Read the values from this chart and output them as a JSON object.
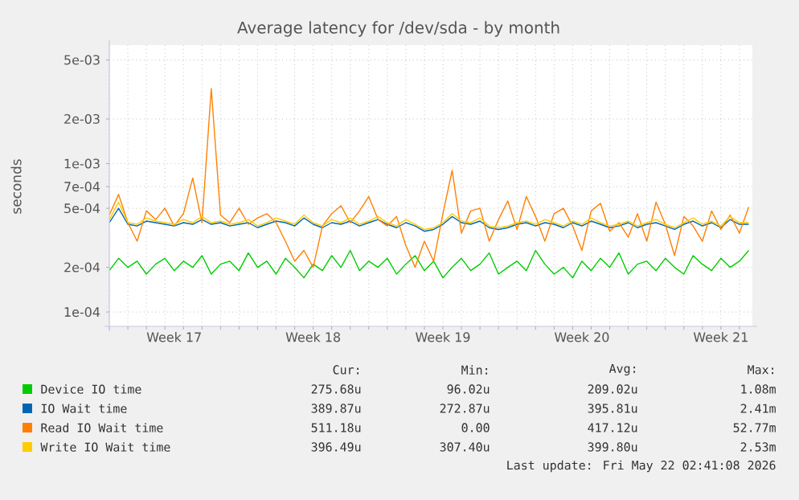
{
  "chart_data": {
    "type": "line",
    "title": "Average latency for /dev/sda - by month",
    "ylabel": "seconds",
    "log": "y",
    "grid": true,
    "legend": "bottom",
    "ylim": [
      8e-05,
      0.0063
    ],
    "yticks": [
      {
        "value": 0.0001,
        "label": "1e-04"
      },
      {
        "value": 0.0002,
        "label": "2e-04"
      },
      {
        "value": 0.0005,
        "label": "5e-04"
      },
      {
        "value": 0.0007,
        "label": "7e-04"
      },
      {
        "value": 0.001,
        "label": "1e-03"
      },
      {
        "value": 0.002,
        "label": "2e-03"
      },
      {
        "value": 0.005,
        "label": "5e-03"
      }
    ],
    "categories": [
      null,
      null,
      null,
      null,
      null,
      null,
      null,
      "Week 17",
      null,
      null,
      null,
      null,
      null,
      null,
      null,
      null,
      null,
      null,
      null,
      null,
      null,
      null,
      "Week 18",
      null,
      null,
      null,
      null,
      null,
      null,
      null,
      null,
      null,
      null,
      null,
      null,
      null,
      "Week 19",
      null,
      null,
      null,
      null,
      null,
      null,
      null,
      null,
      null,
      null,
      null,
      null,
      null,
      null,
      "Week 20",
      null,
      null,
      null,
      null,
      null,
      null,
      null,
      null,
      null,
      null,
      null,
      null,
      null,
      null,
      "Week 21",
      null,
      null,
      null
    ],
    "series": [
      {
        "name": "Device IO time",
        "color": "#00cc00",
        "values": [
          0.00019,
          0.00023,
          0.0002,
          0.00022,
          0.00018,
          0.00021,
          0.00023,
          0.00019,
          0.00022,
          0.0002,
          0.00024,
          0.00018,
          0.00021,
          0.00022,
          0.00019,
          0.00025,
          0.0002,
          0.00022,
          0.00018,
          0.00023,
          0.0002,
          0.00017,
          0.00021,
          0.00019,
          0.00024,
          0.0002,
          0.00026,
          0.00019,
          0.00022,
          0.0002,
          0.00023,
          0.00018,
          0.00021,
          0.00024,
          0.00019,
          0.00022,
          0.00017,
          0.0002,
          0.00023,
          0.00019,
          0.00021,
          0.00025,
          0.00018,
          0.0002,
          0.00022,
          0.00019,
          0.00026,
          0.00021,
          0.00018,
          0.0002,
          0.00017,
          0.00022,
          0.00019,
          0.00023,
          0.0002,
          0.00025,
          0.00018,
          0.00021,
          0.00022,
          0.00019,
          0.00023,
          0.0002,
          0.00018,
          0.00024,
          0.00021,
          0.00019,
          0.00023,
          0.0002,
          0.00022,
          0.00026
        ]
      },
      {
        "name": "IO Wait time",
        "color": "#0066b3",
        "values": [
          0.0004,
          0.0005,
          0.00039,
          0.00038,
          0.00041,
          0.0004,
          0.00039,
          0.00038,
          0.0004,
          0.00039,
          0.00042,
          0.00039,
          0.0004,
          0.00038,
          0.00039,
          0.0004,
          0.00037,
          0.00039,
          0.00041,
          0.0004,
          0.00038,
          0.00043,
          0.00039,
          0.00037,
          0.0004,
          0.00039,
          0.00041,
          0.00038,
          0.0004,
          0.00042,
          0.00039,
          0.00037,
          0.0004,
          0.00038,
          0.00035,
          0.00036,
          0.00039,
          0.00044,
          0.0004,
          0.00039,
          0.00041,
          0.00037,
          0.00036,
          0.00037,
          0.00039,
          0.0004,
          0.00038,
          0.0004,
          0.00039,
          0.00037,
          0.0004,
          0.00038,
          0.00041,
          0.00039,
          0.00037,
          0.00038,
          0.0004,
          0.00037,
          0.00039,
          0.0004,
          0.00038,
          0.00036,
          0.00039,
          0.00041,
          0.00038,
          0.0004,
          0.00037,
          0.00042,
          0.00039,
          0.00039
        ]
      },
      {
        "name": "Read IO Wait time",
        "color": "#ff8000",
        "values": [
          0.00045,
          0.00062,
          0.0004,
          0.0003,
          0.00048,
          0.00042,
          0.0005,
          0.00038,
          0.00046,
          0.0008,
          0.0004,
          0.0032,
          0.00045,
          0.0004,
          0.0005,
          0.00039,
          0.00043,
          0.00046,
          0.0004,
          0.0003,
          0.00022,
          0.00026,
          0.0002,
          0.00038,
          0.00046,
          0.00052,
          0.0004,
          0.00048,
          0.0006,
          0.00042,
          0.00038,
          0.00044,
          0.00028,
          0.0002,
          0.0003,
          0.00022,
          0.00046,
          0.0009,
          0.00034,
          0.00048,
          0.0005,
          0.0003,
          0.00042,
          0.00056,
          0.00036,
          0.0006,
          0.00044,
          0.0003,
          0.00046,
          0.0005,
          0.00038,
          0.00026,
          0.00048,
          0.00054,
          0.00035,
          0.0004,
          0.00032,
          0.00046,
          0.0003,
          0.00055,
          0.00039,
          0.00024,
          0.00044,
          0.00038,
          0.0003,
          0.00048,
          0.00036,
          0.00045,
          0.00034,
          0.00051
        ]
      },
      {
        "name": "Write IO Wait time",
        "color": "#ffcc00",
        "values": [
          0.00042,
          0.00055,
          0.0004,
          0.00039,
          0.00043,
          0.00041,
          0.0004,
          0.00039,
          0.00042,
          0.0004,
          0.00044,
          0.0004,
          0.00041,
          0.00039,
          0.0004,
          0.00042,
          0.00038,
          0.0004,
          0.00043,
          0.00041,
          0.00039,
          0.00045,
          0.0004,
          0.00038,
          0.00042,
          0.0004,
          0.00043,
          0.00039,
          0.00041,
          0.00044,
          0.0004,
          0.00038,
          0.00042,
          0.00039,
          0.00036,
          0.00037,
          0.0004,
          0.00046,
          0.00041,
          0.0004,
          0.00043,
          0.00038,
          0.00037,
          0.00038,
          0.0004,
          0.00041,
          0.00039,
          0.00042,
          0.0004,
          0.00038,
          0.00041,
          0.00039,
          0.00043,
          0.0004,
          0.00038,
          0.00039,
          0.00041,
          0.00038,
          0.0004,
          0.00042,
          0.00039,
          0.00037,
          0.0004,
          0.00043,
          0.00039,
          0.00041,
          0.00038,
          0.00044,
          0.0004,
          0.0004
        ]
      }
    ],
    "annotations": [
      "Cur:",
      "Min:",
      "Avg:",
      "Max:",
      "275.68u",
      "96.02u",
      "209.02u",
      "1.08m",
      "389.87u",
      "272.87u",
      "395.81u",
      "2.41m",
      "511.18u",
      "0.00",
      "417.12u",
      "52.77m",
      "396.49u",
      "307.40u",
      "399.80u",
      "2.53m",
      "Last update: Fri May 22 02:41:08 2026"
    ]
  }
}
